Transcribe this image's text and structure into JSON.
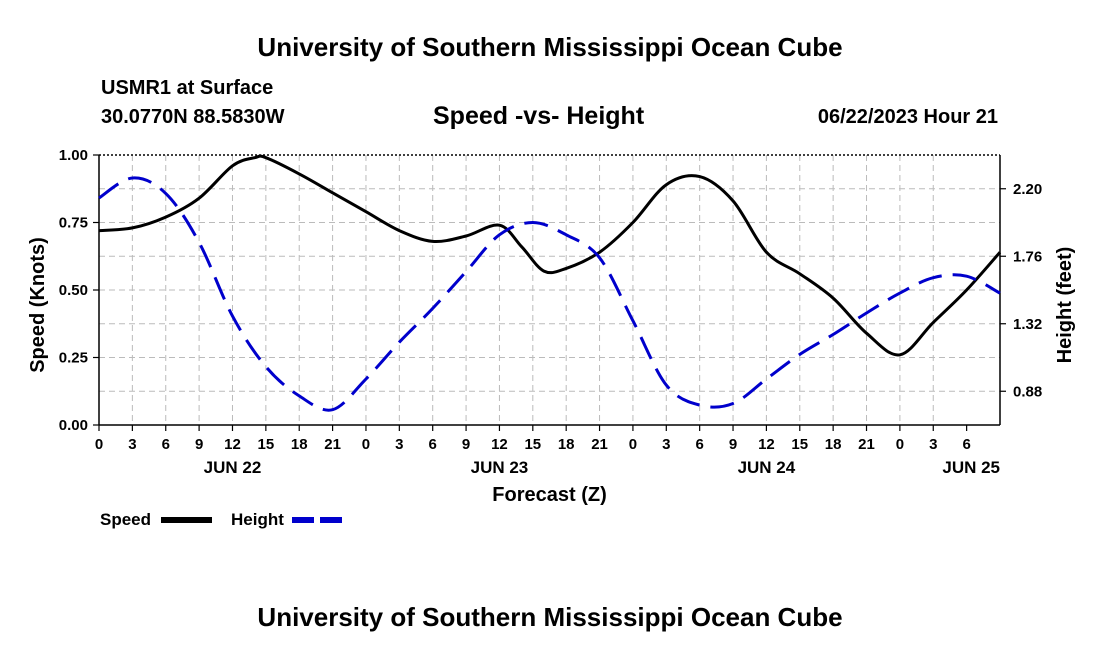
{
  "header": {
    "title": "University of Southern Mississippi Ocean Cube",
    "station": "USMR1 at Surface",
    "coords": "30.0770N  88.5830W",
    "timestamp": "06/22/2023 Hour 21"
  },
  "footer": {
    "title": "University of Southern Mississippi Ocean Cube"
  },
  "colors": {
    "speed": "#000000",
    "height": "#0000cc",
    "grid": "#bbbbbb"
  },
  "chart_data": {
    "type": "line",
    "title": "Speed -vs- Height",
    "xlabel": "Forecast (Z)",
    "ylabel_left": "Speed (Knots)",
    "ylabel_right": "Height (feet)",
    "xlim": [
      0,
      81
    ],
    "x_units": "hours from Jun 22 00Z",
    "x_tick_labels": [
      "0",
      "3",
      "6",
      "9",
      "12",
      "15",
      "18",
      "21",
      "0",
      "3",
      "6",
      "9",
      "12",
      "15",
      "18",
      "21",
      "0",
      "3",
      "6",
      "9",
      "12",
      "15",
      "18",
      "21",
      "0",
      "3",
      "6"
    ],
    "day_labels": [
      {
        "x": 12,
        "label": "JUN 22"
      },
      {
        "x": 36,
        "label": "JUN 23"
      },
      {
        "x": 60,
        "label": "JUN 24"
      },
      {
        "x": 81,
        "label": "JUN 25"
      }
    ],
    "y_left": {
      "min": 0,
      "max": 1,
      "ticks": [
        "0.00",
        "0.25",
        "0.50",
        "0.75",
        "1.00"
      ]
    },
    "y_right": {
      "min": 0.66,
      "max": 2.42,
      "ticks": [
        "0.88",
        "1.32",
        "1.76",
        "2.20"
      ]
    },
    "legend": [
      "Speed",
      "Height"
    ],
    "series": [
      {
        "name": "Speed",
        "axis": "left",
        "style": "solid",
        "x": [
          0,
          3,
          6,
          9,
          12,
          14,
          15,
          18,
          21,
          24,
          27,
          30,
          33,
          36,
          38,
          40,
          42,
          45,
          48,
          51,
          54,
          57,
          60,
          63,
          66,
          69,
          72,
          75,
          78,
          81
        ],
        "y": [
          0.72,
          0.73,
          0.77,
          0.84,
          0.96,
          0.99,
          0.99,
          0.93,
          0.86,
          0.79,
          0.72,
          0.68,
          0.7,
          0.74,
          0.66,
          0.57,
          0.58,
          0.64,
          0.75,
          0.89,
          0.92,
          0.83,
          0.64,
          0.56,
          0.47,
          0.34,
          0.26,
          0.38,
          0.5,
          0.64
        ]
      },
      {
        "name": "Height",
        "axis": "right",
        "style": "dashed",
        "x": [
          0,
          3,
          6,
          9,
          12,
          15,
          18,
          21,
          24,
          27,
          30,
          33,
          36,
          39,
          42,
          45,
          48,
          51,
          54,
          57,
          60,
          63,
          66,
          69,
          72,
          75,
          78,
          81
        ],
        "y": [
          2.14,
          2.27,
          2.17,
          1.85,
          1.37,
          1.04,
          0.85,
          0.76,
          0.96,
          1.2,
          1.42,
          1.66,
          1.9,
          1.98,
          1.9,
          1.75,
          1.34,
          0.92,
          0.79,
          0.8,
          0.96,
          1.12,
          1.25,
          1.39,
          1.52,
          1.62,
          1.63,
          1.52
        ]
      }
    ]
  }
}
